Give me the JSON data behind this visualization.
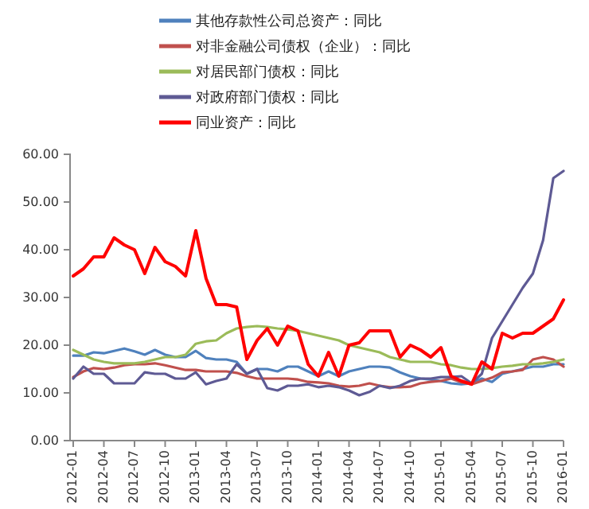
{
  "chart_data": {
    "type": "line",
    "categories": [
      "2012-01",
      null,
      null,
      "2012-04",
      null,
      null,
      "2012-07",
      null,
      null,
      "2012-10",
      null,
      null,
      "2013-01",
      null,
      null,
      "2013-04",
      null,
      null,
      "2013-07",
      null,
      null,
      "2013-10",
      null,
      null,
      "2014-01",
      null,
      null,
      "2014-04",
      null,
      null,
      "2014-07",
      null,
      null,
      "2014-10",
      null,
      null,
      "2015-01",
      null,
      null,
      "2015-04",
      null,
      null,
      "2015-07",
      null,
      null,
      "2015-10",
      null,
      null,
      "2016-01"
    ],
    "series": [
      {
        "name": "其他存款性公司总资产：同比",
        "color": "#4f81bd",
        "values": [
          17.8,
          17.8,
          18.5,
          18.3,
          18.8,
          19.3,
          18.7,
          18,
          19,
          18,
          17.5,
          17.5,
          18.8,
          17.3,
          17,
          17,
          16.5,
          14,
          15,
          15,
          14.5,
          15.5,
          15.5,
          14.5,
          13.5,
          14.5,
          13.5,
          14.5,
          15,
          15.5,
          15.5,
          15.3,
          14.3,
          13.5,
          13,
          12.8,
          12.5,
          12,
          11.8,
          12,
          13,
          12.3,
          14,
          14.5,
          15,
          15.5,
          15.5,
          16,
          16
        ]
      },
      {
        "name": "对非金融公司债权（企业）：同比",
        "color": "#c0504d",
        "values": [
          13.3,
          14.5,
          15.2,
          15,
          15.3,
          15.8,
          16,
          16,
          16.2,
          15.8,
          15.3,
          14.8,
          14.8,
          14.5,
          14.5,
          14.5,
          14.2,
          13.5,
          13,
          13,
          13,
          13,
          12.8,
          12.3,
          12.2,
          12,
          11.5,
          11.3,
          11.5,
          12,
          11.5,
          11.2,
          11.2,
          11.3,
          12,
          12.3,
          12.5,
          13,
          12.2,
          11.8,
          12.5,
          13.2,
          14.3,
          14.5,
          14.8,
          17,
          17.5,
          17,
          15.5
        ]
      },
      {
        "name": "对居民部门债权：同比",
        "color": "#9bbb59",
        "values": [
          19,
          18,
          17,
          16.5,
          16.2,
          16.2,
          16.2,
          16.5,
          17,
          17.5,
          17.5,
          18,
          20.3,
          20.8,
          21,
          22.5,
          23.5,
          23.8,
          24,
          23.8,
          23.5,
          23.3,
          23,
          22.5,
          22,
          21.5,
          21,
          20,
          19.5,
          19,
          18.5,
          17.5,
          17,
          16.5,
          16.5,
          16.5,
          16,
          15.8,
          15.3,
          15,
          15,
          15.2,
          15.5,
          15.7,
          16,
          16,
          16.2,
          16.5,
          17
        ]
      },
      {
        "name": "对政府部门债权：同比",
        "color": "#5e5a94",
        "values": [
          13,
          15.5,
          14,
          14,
          12,
          12,
          12,
          14.3,
          14,
          14,
          13,
          13,
          14.3,
          11.8,
          12.5,
          13,
          16,
          14,
          15,
          11,
          10.5,
          11.5,
          11.5,
          11.8,
          11.2,
          11.5,
          11.2,
          10.5,
          9.5,
          10.2,
          11.5,
          11,
          11.5,
          12.5,
          13,
          13,
          13.3,
          13.3,
          13.5,
          12,
          14,
          21.5,
          25,
          28.5,
          32,
          35,
          42,
          55,
          56.5
        ]
      },
      {
        "name": "同业资产：同比",
        "color": "#ff0000",
        "values": [
          34.5,
          36,
          38.5,
          38.5,
          42.5,
          41,
          40,
          35,
          40.5,
          37.5,
          36.5,
          34.5,
          44,
          34,
          28.5,
          28.5,
          28,
          17,
          21,
          23.5,
          20,
          24,
          23,
          16,
          13.5,
          18.5,
          13.5,
          20,
          20.5,
          23,
          23,
          23,
          17.5,
          20,
          19,
          17.5,
          19.5,
          13.5,
          12.5,
          11.8,
          16.5,
          15,
          22.5,
          21.5,
          22.5,
          22.5,
          24,
          25.5,
          29.5
        ]
      }
    ],
    "ylim": [
      0,
      60
    ],
    "yticks": [
      {
        "value": 0,
        "label": "0.00"
      },
      {
        "value": 10,
        "label": "10.00"
      },
      {
        "value": 20,
        "label": "20.00"
      },
      {
        "value": 30,
        "label": "30.00"
      },
      {
        "value": 40,
        "label": "40.00"
      },
      {
        "value": 50,
        "label": "50.00"
      },
      {
        "value": 60,
        "label": "60.00"
      }
    ],
    "grid": false,
    "legend": "top",
    "marker": "none",
    "line_style": "solid"
  }
}
